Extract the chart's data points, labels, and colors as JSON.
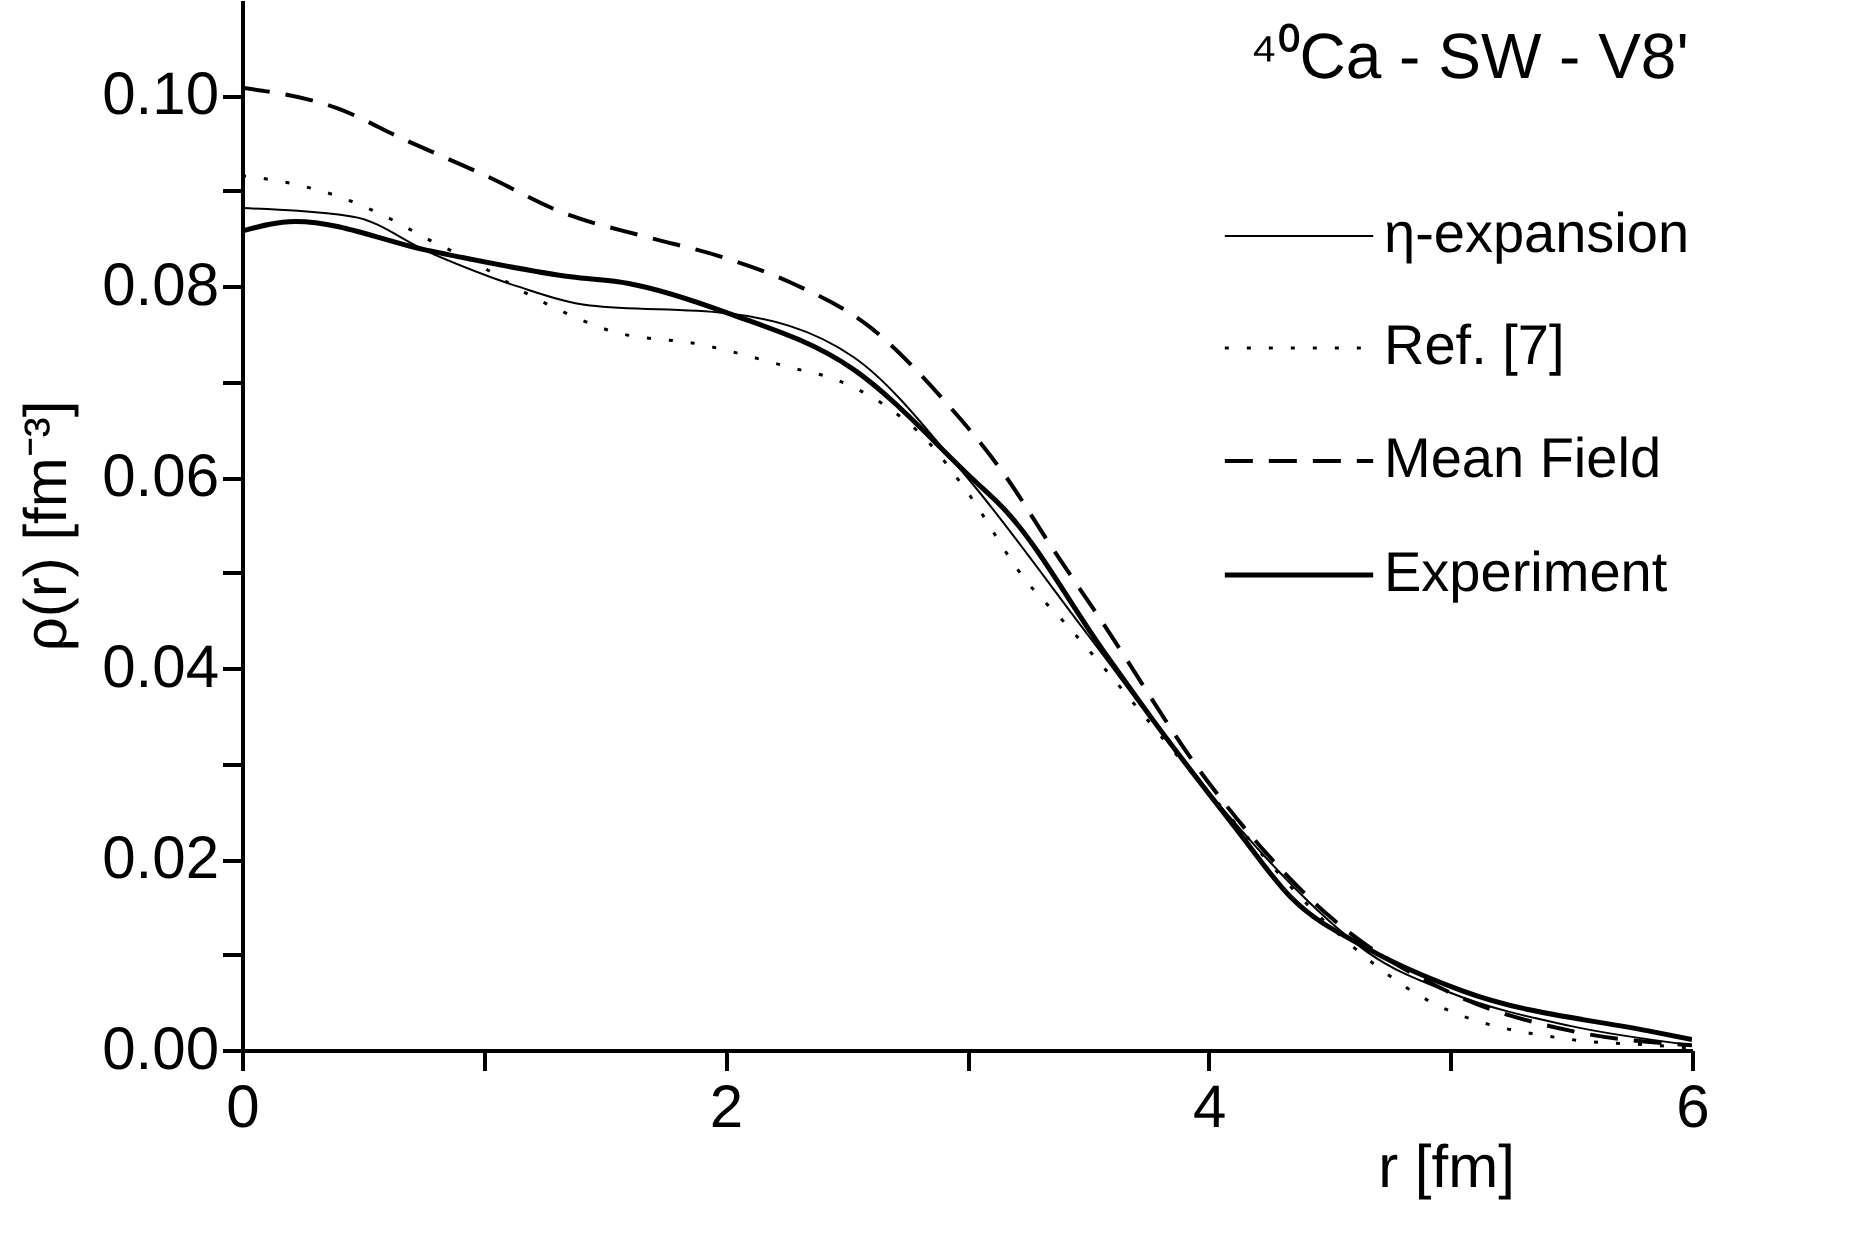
{
  "chart_data": {
    "type": "line",
    "title": "⁴⁰Ca - SW - V8'",
    "xlabel": "r [fm]",
    "ylabel": "ρ(r) [fm⁻³]",
    "xlim": [
      0,
      6
    ],
    "ylim": [
      0,
      0.11
    ],
    "xticks": [
      0,
      {
        "value": 1,
        "label": null
      },
      2,
      {
        "value": 3,
        "label": null
      },
      4,
      {
        "value": 5,
        "label": null
      },
      6
    ],
    "yticks": [
      {
        "value": 0,
        "label": "0.00"
      },
      {
        "value": 0.01,
        "label": null
      },
      {
        "value": 0.02,
        "label": "0.02"
      },
      {
        "value": 0.03,
        "label": null
      },
      {
        "value": 0.04,
        "label": "0.04"
      },
      {
        "value": 0.05,
        "label": null
      },
      {
        "value": 0.06,
        "label": "0.06"
      },
      {
        "value": 0.07,
        "label": null
      },
      {
        "value": 0.08,
        "label": "0.08"
      },
      {
        "value": 0.09,
        "label": null
      },
      {
        "value": 0.1,
        "label": "0.10"
      }
    ],
    "grid": false,
    "legend": "top right",
    "series": [
      {
        "name": "η-expansion",
        "color": "#000000",
        "line_style": "solid",
        "x": [
          0,
          0.46,
          0.78,
          1.14,
          1.44,
          2.0,
          2.53,
          3.0,
          3.5,
          4.0,
          4.5,
          4.66,
          5.0,
          5.5,
          6.0
        ],
        "values": [
          0.0882,
          0.0873,
          0.0835,
          0.08,
          0.078,
          0.0772,
          0.0726,
          0.06,
          0.0435,
          0.027,
          0.0135,
          0.0102,
          0.006,
          0.0025,
          0.0005
        ]
      },
      {
        "name": "Ref. [7]",
        "color": "#000000",
        "line_style": "dotted",
        "x": [
          0,
          0.2,
          0.39,
          0.58,
          0.78,
          0.97,
          1.16,
          1.34,
          1.53,
          1.9,
          2.27,
          2.46,
          2.65,
          2.84,
          3.0,
          3.24,
          3.41,
          4.0,
          4.5,
          4.9,
          5.5,
          5.84,
          6.0
        ],
        "values": [
          0.0916,
          0.0908,
          0.0895,
          0.0875,
          0.0848,
          0.0824,
          0.0795,
          0.0772,
          0.0753,
          0.0739,
          0.0715,
          0.0702,
          0.0677,
          0.0637,
          0.0585,
          0.0493,
          0.0446,
          0.027,
          0.013,
          0.0053,
          0.0011,
          0.0005,
          0.0002
        ]
      },
      {
        "name": "Mean Field",
        "color": "#000000",
        "line_style": "dashed",
        "x": [
          0,
          0.39,
          0.67,
          1.0,
          1.34,
          1.67,
          1.97,
          2.27,
          2.6,
          2.9,
          3.16,
          3.35,
          3.55,
          4.0,
          4.5,
          5.0,
          5.5,
          6.0
        ],
        "values": [
          0.1008,
          0.0987,
          0.0954,
          0.0917,
          0.0876,
          0.0852,
          0.0832,
          0.0804,
          0.0757,
          0.0682,
          0.0601,
          0.0527,
          0.0452,
          0.028,
          0.014,
          0.006,
          0.002,
          0.0005
        ]
      },
      {
        "name": "Experiment",
        "color": "#000000",
        "line_style": "solid",
        "x": [
          0,
          0.22,
          0.78,
          1.36,
          1.6,
          2.01,
          2.53,
          3.02,
          3.16,
          3.57,
          3.76,
          4.11,
          4.34,
          4.66,
          5.05,
          5.84,
          6.0
        ],
        "values": [
          0.0858,
          0.0868,
          0.0837,
          0.081,
          0.0803,
          0.0772,
          0.0713,
          0.0599,
          0.0565,
          0.0416,
          0.0349,
          0.0233,
          0.016,
          0.0106,
          0.0062,
          0.0019,
          0.0011
        ]
      }
    ]
  }
}
